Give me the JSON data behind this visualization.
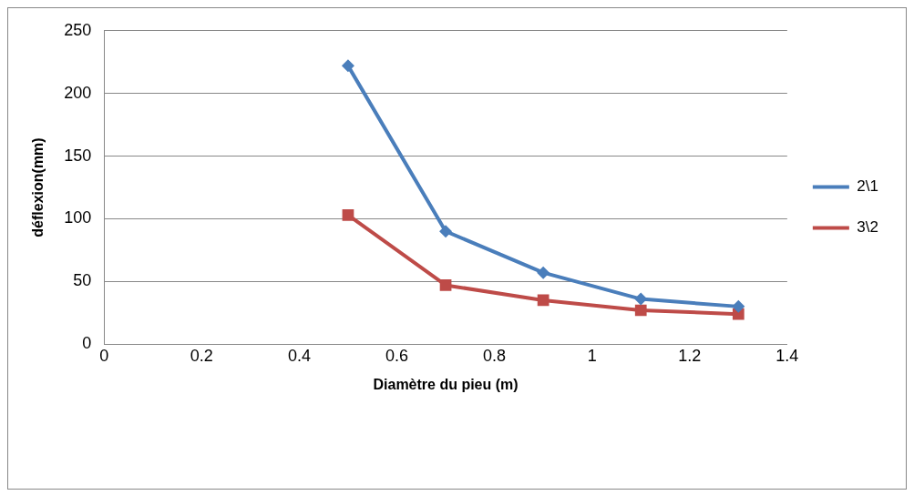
{
  "chart_data": {
    "type": "line",
    "xlabel": "Diamètre du pieu (m)",
    "ylabel": "déflexion(mm)",
    "x": [
      0.5,
      0.7,
      0.9,
      1.1,
      1.3
    ],
    "series": [
      {
        "name": "2\\1",
        "color": "#4a7ebb",
        "marker": "diamond",
        "values": [
          222,
          90,
          57,
          36,
          30
        ]
      },
      {
        "name": "3\\2",
        "color": "#be4b48",
        "marker": "square",
        "values": [
          103,
          47,
          35,
          27,
          24
        ]
      }
    ],
    "xlim": [
      0,
      1.4
    ],
    "xticks": [
      0,
      0.2,
      0.4,
      0.6,
      0.8,
      1,
      1.2,
      1.4
    ],
    "ylim": [
      0,
      250
    ],
    "yticks": [
      0,
      50,
      100,
      150,
      200,
      250
    ],
    "grid": "y",
    "legend": "right",
    "line_style": "solid"
  }
}
